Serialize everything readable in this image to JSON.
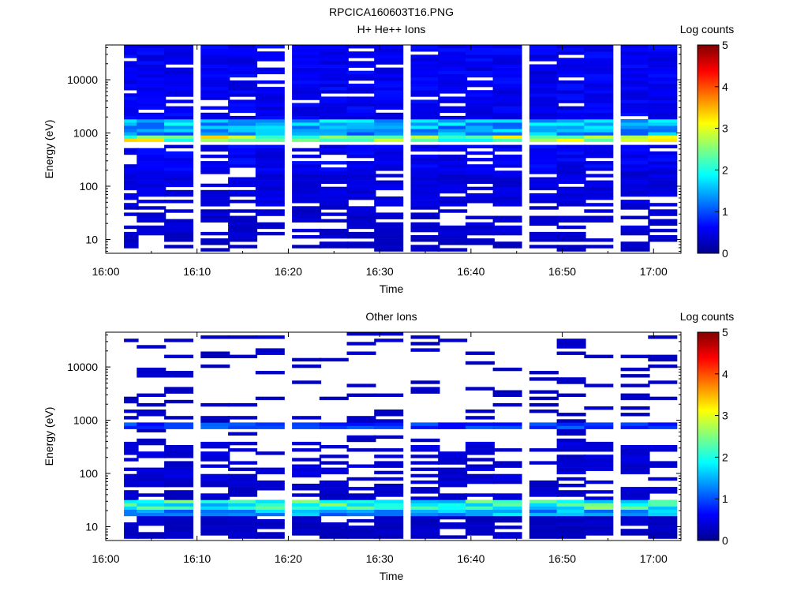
{
  "figure": {
    "title": "RPCICA160603T16.PNG"
  },
  "chart_data": [
    {
      "type": "heatmap",
      "title": "H+ He++ Ions",
      "xlabel": "Time",
      "ylabel": "Energy (eV)",
      "colorbar_label": "Log counts",
      "x_ticks": [
        "16:00",
        "16:10",
        "16:20",
        "16:30",
        "16:40",
        "16:50",
        "17:00"
      ],
      "x_range": [
        "16:00",
        "17:03"
      ],
      "y_ticks": [
        "10",
        "100",
        "1000",
        "10000"
      ],
      "y_range": [
        5.5,
        45000
      ],
      "y_scale": "log",
      "colorbar_ticks": [
        "0",
        "1",
        "2",
        "3",
        "4",
        "5"
      ],
      "zlim": [
        0,
        5
      ],
      "colormap": "rainbow",
      "time_bins": [
        "16:02",
        "16:05",
        "16:08",
        "16:12",
        "16:15",
        "16:18",
        "16:22",
        "16:25",
        "16:28",
        "16:31",
        "16:35",
        "16:38",
        "16:41",
        "16:44",
        "16:48",
        "16:51",
        "16:54",
        "16:58",
        "17:01"
      ],
      "bands": [
        {
          "e_min": 6,
          "e_max": 10,
          "level": 0.3,
          "coverage": 0.45
        },
        {
          "e_min": 10,
          "e_max": 40,
          "level": 0.35,
          "coverage": 0.55
        },
        {
          "e_min": 40,
          "e_max": 200,
          "level": 0.45,
          "coverage": 0.75
        },
        {
          "e_min": 200,
          "e_max": 600,
          "level": 0.55,
          "coverage": 0.85
        },
        {
          "e_min": 700,
          "e_max": 900,
          "level": 2.6,
          "coverage": 1.0
        },
        {
          "e_min": 900,
          "e_max": 1300,
          "level": 1.4,
          "coverage": 1.0
        },
        {
          "e_min": 1300,
          "e_max": 1800,
          "level": 1.5,
          "coverage": 1.0
        },
        {
          "e_min": 1800,
          "e_max": 45000,
          "level": 0.55,
          "coverage": 0.9
        }
      ]
    },
    {
      "type": "heatmap",
      "title": "Other Ions",
      "xlabel": "Time",
      "ylabel": "Energy (eV)",
      "colorbar_label": "Log counts",
      "x_ticks": [
        "16:00",
        "16:10",
        "16:20",
        "16:30",
        "16:40",
        "16:50",
        "17:00"
      ],
      "x_range": [
        "16:00",
        "17:03"
      ],
      "y_ticks": [
        "10",
        "100",
        "1000",
        "10000"
      ],
      "y_range": [
        5.5,
        45000
      ],
      "y_scale": "log",
      "colorbar_ticks": [
        "0",
        "1",
        "2",
        "3",
        "4",
        "5"
      ],
      "zlim": [
        0,
        5
      ],
      "colormap": "rainbow",
      "time_bins": [
        "16:02",
        "16:05",
        "16:08",
        "16:12",
        "16:15",
        "16:18",
        "16:22",
        "16:25",
        "16:28",
        "16:31",
        "16:35",
        "16:38",
        "16:41",
        "16:44",
        "16:48",
        "16:51",
        "16:54",
        "16:58",
        "17:01"
      ],
      "bands": [
        {
          "e_min": 6,
          "e_max": 16,
          "level": 0.3,
          "coverage": 0.85
        },
        {
          "e_min": 16,
          "e_max": 22,
          "level": 1.4,
          "coverage": 1.0
        },
        {
          "e_min": 22,
          "e_max": 34,
          "level": 2.0,
          "coverage": 1.0
        },
        {
          "e_min": 34,
          "e_max": 60,
          "level": 0.35,
          "coverage": 0.7
        },
        {
          "e_min": 60,
          "e_max": 400,
          "level": 0.4,
          "coverage": 0.55
        },
        {
          "e_min": 700,
          "e_max": 900,
          "level": 0.9,
          "coverage": 1.0
        },
        {
          "e_min": 400,
          "e_max": 45000,
          "level": 0.3,
          "coverage": 0.18
        }
      ]
    }
  ]
}
